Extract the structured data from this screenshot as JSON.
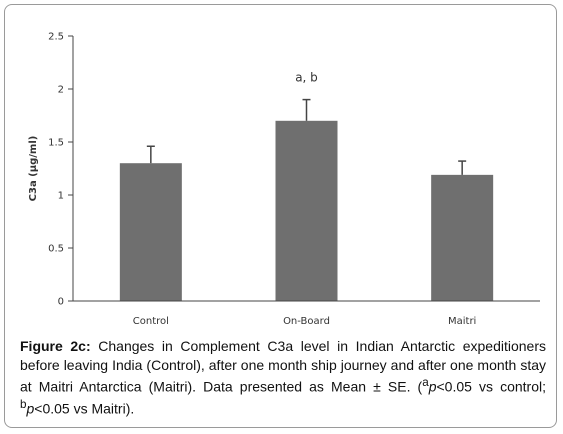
{
  "chart_data": {
    "type": "bar",
    "categories": [
      "Control",
      "On-Board",
      "Maitri"
    ],
    "values": [
      1.3,
      1.7,
      1.19
    ],
    "errors": [
      0.16,
      0.2,
      0.13
    ],
    "annotations": [
      "",
      "a, b",
      ""
    ],
    "ylabel": "C3a (µg/ml)",
    "xlabel": "",
    "ylim": [
      0,
      2.5
    ],
    "yticks": [
      "0",
      "0.5",
      "1",
      "1.5",
      "2",
      "2.5"
    ],
    "bar_color": "#6f6f6f",
    "grid": false
  },
  "caption": {
    "lead": "Figure 2c:",
    "text": " Changes in Complement C3a level in Indian Antarctic expeditioners before leaving India (Control), after one month ship journey and after one month stay at Maitri Antarctica (Maitri). Data presented as Mean ± SE. (",
    "sup_a": "a",
    "p_a": "p",
    "mid": "<0.05 vs control; ",
    "sup_b": "b",
    "p_b": "p",
    "end": "<0.05 vs Maitri)."
  }
}
